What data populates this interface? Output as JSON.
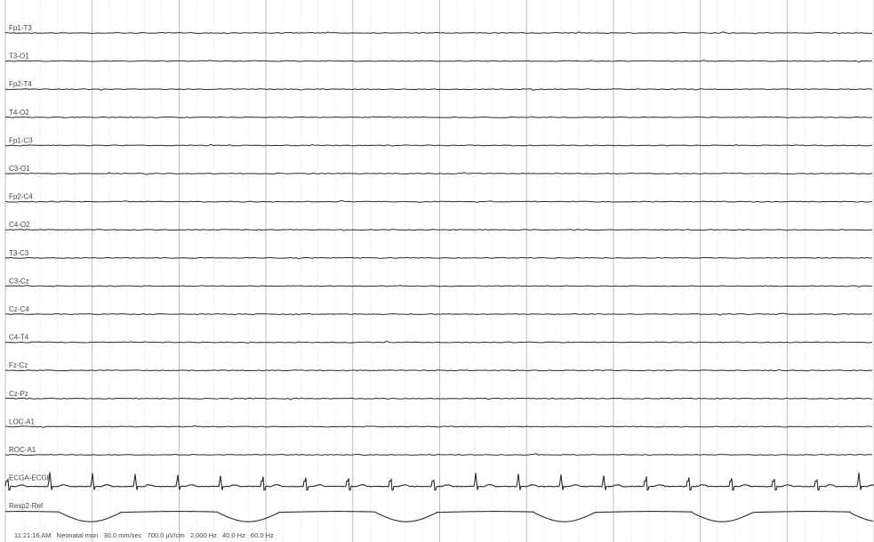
{
  "chart_data": {
    "type": "line",
    "title": "",
    "xlabel": "",
    "ylabel": "",
    "grid": true,
    "seconds_shown": 10,
    "channels": [
      {
        "name": "Fp1-T3",
        "kind": "eeg"
      },
      {
        "name": "T3-O1",
        "kind": "eeg"
      },
      {
        "name": "Fp2-T4",
        "kind": "eeg"
      },
      {
        "name": "T4-O2",
        "kind": "eeg"
      },
      {
        "name": "Fp1-C3",
        "kind": "eeg"
      },
      {
        "name": "C3-O1",
        "kind": "eeg"
      },
      {
        "name": "Fp2-C4",
        "kind": "eeg"
      },
      {
        "name": "C4-O2",
        "kind": "eeg"
      },
      {
        "name": "T3-C3",
        "kind": "eeg"
      },
      {
        "name": "C3-Cz",
        "kind": "eeg"
      },
      {
        "name": "Cz-C4",
        "kind": "eeg"
      },
      {
        "name": "C4-T4",
        "kind": "eeg"
      },
      {
        "name": "Fz-Cz",
        "kind": "eeg"
      },
      {
        "name": "Cz-Pz",
        "kind": "eeg"
      },
      {
        "name": "LOC-A1",
        "kind": "eeg"
      },
      {
        "name": "ROC-A1",
        "kind": "eeg"
      },
      {
        "name": "ECGA-ECGB",
        "kind": "ecg",
        "beats_per_second": 2.04
      },
      {
        "name": "Resp2-Ref",
        "kind": "resp",
        "breaths_per_second": 0.55
      }
    ]
  },
  "footer": {
    "timestamp": "11:21:16 AM",
    "montage": "Neonatal mon",
    "paper_speed": "30.0 mm/sec",
    "sensitivity": "700.0 µV/cm",
    "low_filter": "2.000 Hz",
    "high_filter": "40.0 Hz",
    "notch": "60.0 Hz"
  }
}
